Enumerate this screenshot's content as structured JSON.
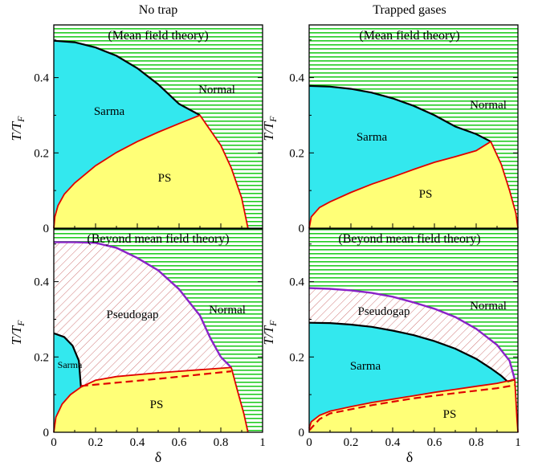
{
  "column_titles": [
    "No trap",
    "Trapped gases"
  ],
  "colors": {
    "normal_stripe": "#22cc22",
    "sarma": "#33e8ee",
    "ps": "#ffff77",
    "pseudogap_hatch": "#d07878",
    "boundary_red": "#e00000",
    "boundary_purple": "#8a22c8",
    "boundary_black": "#000000"
  },
  "chart_data": [
    {
      "type": "area",
      "panel": "top-left",
      "annotation": "(Mean field theory)",
      "xlabel": "",
      "ylabel": "T/T_F",
      "xlim": [
        0,
        1
      ],
      "ylim": [
        0,
        0.54
      ],
      "yticks": [
        "0",
        "0.2",
        "0.4"
      ],
      "xticks": [],
      "regions": [
        "Sarma",
        "Normal",
        "PS"
      ],
      "lines": [
        {
          "name": "sarma-normal",
          "color": "black",
          "x": [
            0,
            0.1,
            0.2,
            0.3,
            0.4,
            0.5,
            0.6,
            0.7
          ],
          "y": [
            0.498,
            0.494,
            0.48,
            0.458,
            0.425,
            0.382,
            0.33,
            0.3
          ]
        },
        {
          "name": "sarma-ps",
          "color": "red",
          "x": [
            0,
            0.005,
            0.02,
            0.05,
            0.1,
            0.2,
            0.3,
            0.4,
            0.5,
            0.6,
            0.7
          ],
          "y": [
            0,
            0.03,
            0.06,
            0.09,
            0.12,
            0.166,
            0.201,
            0.23,
            0.255,
            0.278,
            0.3
          ]
        },
        {
          "name": "ps-normal",
          "color": "red",
          "x": [
            0.7,
            0.8,
            0.85,
            0.9,
            0.93
          ],
          "y": [
            0.3,
            0.22,
            0.16,
            0.08,
            0
          ]
        }
      ]
    },
    {
      "type": "area",
      "panel": "top-right",
      "annotation": "(Mean field theory)",
      "xlabel": "",
      "ylabel": "T/T_F",
      "xlim": [
        0,
        1
      ],
      "ylim": [
        0,
        0.54
      ],
      "yticks": [
        "0",
        "0.2",
        "0.4"
      ],
      "xticks": [],
      "regions": [
        "Sarma",
        "Normal",
        "PS"
      ],
      "lines": [
        {
          "name": "sarma-normal",
          "color": "black",
          "x": [
            0,
            0.1,
            0.2,
            0.3,
            0.4,
            0.5,
            0.6,
            0.7,
            0.8,
            0.87
          ],
          "y": [
            0.378,
            0.376,
            0.37,
            0.36,
            0.345,
            0.325,
            0.3,
            0.27,
            0.25,
            0.23
          ]
        },
        {
          "name": "sarma-ps",
          "color": "red",
          "x": [
            0,
            0.01,
            0.05,
            0.1,
            0.2,
            0.3,
            0.4,
            0.5,
            0.6,
            0.7,
            0.8,
            0.87
          ],
          "y": [
            0,
            0.03,
            0.055,
            0.07,
            0.095,
            0.117,
            0.136,
            0.156,
            0.175,
            0.19,
            0.206,
            0.23
          ]
        },
        {
          "name": "ps-normal",
          "color": "red",
          "x": [
            0.87,
            0.92,
            0.96,
            0.99,
            1.0
          ],
          "y": [
            0.23,
            0.17,
            0.1,
            0.04,
            0
          ]
        }
      ]
    },
    {
      "type": "area",
      "panel": "bottom-left",
      "annotation": "(Beyond mean field theory)",
      "xlabel": "δ",
      "ylabel": "T/T_F",
      "xlim": [
        0,
        1
      ],
      "ylim": [
        0,
        0.54
      ],
      "yticks": [
        "0",
        "0.2",
        "0.4"
      ],
      "xticks": [
        "0",
        "0.2",
        "0.4",
        "0.6",
        "0.8",
        "1"
      ],
      "regions": [
        "Pseudogap",
        "Normal",
        "Sarma",
        "PS"
      ],
      "lines": [
        {
          "name": "pseudogap-normal",
          "color": "purple",
          "x": [
            0,
            0.1,
            0.2,
            0.3,
            0.4,
            0.5,
            0.6,
            0.7,
            0.75,
            0.8
          ],
          "y": [
            0.505,
            0.505,
            0.503,
            0.49,
            0.463,
            0.43,
            0.38,
            0.31,
            0.25,
            0.2
          ]
        },
        {
          "name": "sarma-pseudogap",
          "color": "black",
          "x": [
            0,
            0.05,
            0.09,
            0.12,
            0.13
          ],
          "y": [
            0.263,
            0.253,
            0.23,
            0.19,
            0.12
          ]
        },
        {
          "name": "pseudogap-ps",
          "color": "red",
          "x": [
            0.13,
            0.2,
            0.3,
            0.5,
            0.7,
            0.85
          ],
          "y": [
            0.12,
            0.138,
            0.148,
            0.158,
            0.166,
            0.172
          ]
        },
        {
          "name": "ps-normal",
          "color": "red",
          "x": [
            0.85,
            0.88,
            0.91,
            0.93
          ],
          "y": [
            0.172,
            0.11,
            0.05,
            0
          ]
        },
        {
          "name": "sarma-ps",
          "color": "red",
          "x": [
            0,
            0.01,
            0.04,
            0.08,
            0.13
          ],
          "y": [
            0,
            0.04,
            0.075,
            0.1,
            0.12
          ]
        },
        {
          "name": "dashed-boundary",
          "color": "red",
          "dashed": true,
          "x": [
            0.13,
            0.5,
            0.85
          ],
          "y": [
            0.123,
            0.142,
            0.162
          ]
        }
      ]
    },
    {
      "type": "area",
      "panel": "bottom-right",
      "annotation": "(Beyond mean field theory)",
      "xlabel": "δ",
      "ylabel": "T/T_F",
      "xlim": [
        0,
        1
      ],
      "ylim": [
        0,
        0.54
      ],
      "yticks": [
        "0",
        "0.2",
        "0.4"
      ],
      "xticks": [
        "0",
        "0.2",
        "0.4",
        "0.6",
        "0.8",
        "1"
      ],
      "regions": [
        "Pseudogap",
        "Normal",
        "Sarma",
        "PS"
      ],
      "lines": [
        {
          "name": "pseudogap-normal",
          "color": "purple",
          "x": [
            0,
            0.1,
            0.2,
            0.3,
            0.4,
            0.5,
            0.6,
            0.7,
            0.8,
            0.9,
            0.96,
            0.985
          ],
          "y": [
            0.383,
            0.381,
            0.377,
            0.37,
            0.36,
            0.345,
            0.328,
            0.306,
            0.275,
            0.232,
            0.19,
            0.14
          ]
        },
        {
          "name": "sarma-pseudogap",
          "color": "black",
          "x": [
            0,
            0.1,
            0.2,
            0.3,
            0.4,
            0.5,
            0.6,
            0.7,
            0.8,
            0.87,
            0.92,
            0.95
          ],
          "y": [
            0.291,
            0.29,
            0.286,
            0.28,
            0.27,
            0.258,
            0.242,
            0.222,
            0.195,
            0.17,
            0.15,
            0.135
          ]
        },
        {
          "name": "sarma-ps",
          "color": "red",
          "x": [
            0,
            0.01,
            0.05,
            0.1,
            0.2,
            0.3,
            0.4,
            0.5,
            0.6,
            0.7,
            0.8,
            0.9,
            0.985
          ],
          "y": [
            0.01,
            0.028,
            0.045,
            0.056,
            0.068,
            0.079,
            0.088,
            0.097,
            0.106,
            0.114,
            0.122,
            0.13,
            0.14
          ]
        },
        {
          "name": "ps-normal",
          "color": "red",
          "x": [
            0.985,
            0.99,
            0.995,
            1.0
          ],
          "y": [
            0.14,
            0.09,
            0.04,
            0
          ]
        },
        {
          "name": "dashed-boundary",
          "color": "red",
          "dashed": true,
          "x": [
            0,
            0.05,
            0.1,
            0.3,
            0.5,
            0.7,
            0.9,
            0.985
          ],
          "y": [
            0.005,
            0.035,
            0.05,
            0.072,
            0.09,
            0.104,
            0.117,
            0.125
          ]
        }
      ]
    }
  ]
}
